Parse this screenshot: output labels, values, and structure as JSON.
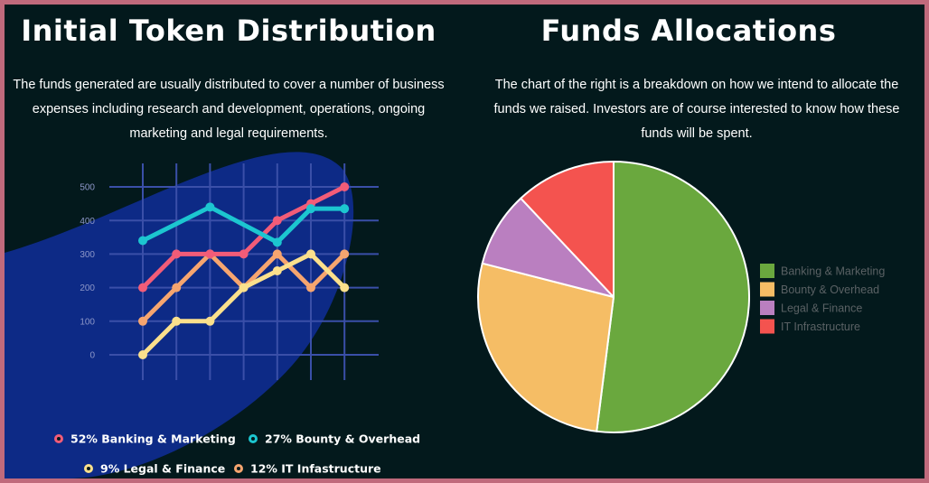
{
  "left": {
    "title": "Initial Token Distribution",
    "description": "The funds generated are usually distributed to cover a number of business expenses including research and development, operations, ongoing marketing and legal requirements."
  },
  "right": {
    "title": "Funds Allocations",
    "description": "The chart of the right is a breakdown on how we intend to allocate the funds we raised. Investors are of course interested to know how these funds will be spent."
  },
  "colors": {
    "background": "#03191c",
    "frame": "#c06a7c",
    "blob": "#0d2a86",
    "grid": "#3a4fa8",
    "tick": "#8d97c8"
  },
  "chart_data": [
    {
      "type": "line",
      "title": "",
      "xlabel": "",
      "ylabel": "",
      "y_ticks": [
        "500",
        "400",
        "300",
        "200",
        "100",
        "0"
      ],
      "ylim": [
        0,
        500
      ],
      "x": [
        0,
        1,
        2,
        3,
        4,
        5,
        6
      ],
      "grid": true,
      "legend_placement": "bottom",
      "series": [
        {
          "name": "52% Banking & Marketing",
          "color": "#f25c78",
          "values": [
            200,
            300,
            300,
            300,
            400,
            450,
            500
          ]
        },
        {
          "name": "27% Bounty & Overhead",
          "color": "#1cc6d0",
          "values": [
            340,
            null,
            440,
            null,
            335,
            435,
            435
          ]
        },
        {
          "name": "9% Legal & Finance",
          "color": "#fbe08c",
          "values": [
            0,
            100,
            100,
            200,
            250,
            300,
            200
          ]
        },
        {
          "name": "12% IT Infastructure",
          "color": "#f6a56f",
          "values": [
            100,
            200,
            300,
            200,
            300,
            200,
            300
          ]
        }
      ]
    },
    {
      "type": "pie",
      "title": "",
      "legend_placement": "right",
      "slices": [
        {
          "label": "Banking & Marketing",
          "value": 52,
          "color": "#6aa83e"
        },
        {
          "label": "Bounty & Overhead",
          "value": 27,
          "color": "#f5bd65"
        },
        {
          "label": "Legal & Finance",
          "value": 9,
          "color": "#ba7fc0"
        },
        {
          "label": "IT Infrastructure",
          "value": 12,
          "color": "#f4534f"
        }
      ]
    }
  ]
}
